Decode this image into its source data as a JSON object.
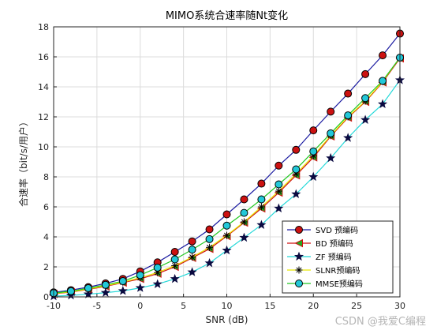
{
  "chart_data": {
    "type": "line",
    "title": "MIMO系统合速率随Nt变化",
    "xlabel": "SNR (dB)",
    "ylabel": "合速率（bit/s/用户）",
    "xlim": [
      -10,
      30
    ],
    "ylim": [
      0,
      18
    ],
    "xticks": [
      -10,
      -5,
      0,
      5,
      10,
      15,
      20,
      25,
      30
    ],
    "yticks": [
      0,
      2,
      4,
      6,
      8,
      10,
      12,
      14,
      16,
      18
    ],
    "grid": true,
    "legend_position": "lower-right",
    "x": [
      -10,
      -8,
      -6,
      -4,
      -2,
      0,
      2,
      4,
      6,
      8,
      10,
      12,
      14,
      16,
      18,
      20,
      22,
      24,
      26,
      28,
      30
    ],
    "series": [
      {
        "name": "SVD 预编码",
        "color": "#1a1aa0",
        "marker": "circle",
        "marker_fill": "#cc1111",
        "values": [
          0.3,
          0.45,
          0.65,
          0.9,
          1.2,
          1.7,
          2.3,
          3.0,
          3.7,
          4.5,
          5.5,
          6.5,
          7.55,
          8.75,
          9.8,
          11.1,
          12.35,
          13.55,
          14.85,
          16.1,
          17.55
        ]
      },
      {
        "name": "BD 预编码",
        "color": "#d01010",
        "marker": "triangle-left",
        "marker_fill": "#22aa22",
        "values": [
          0.2,
          0.32,
          0.5,
          0.7,
          0.95,
          1.2,
          1.55,
          2.0,
          2.6,
          3.2,
          4.05,
          4.95,
          5.9,
          6.95,
          8.1,
          9.3,
          10.7,
          11.95,
          13.0,
          14.3,
          15.9
        ]
      },
      {
        "name": "ZF 预编码",
        "color": "#22d8d8",
        "marker": "star",
        "marker_fill": "#0a0a40",
        "values": [
          0.05,
          0.1,
          0.18,
          0.28,
          0.4,
          0.6,
          0.85,
          1.2,
          1.65,
          2.25,
          3.1,
          3.95,
          4.8,
          5.9,
          6.85,
          8.0,
          9.25,
          10.6,
          11.8,
          12.85,
          14.45
        ]
      },
      {
        "name": "SLNR预编码",
        "color": "#e8e800",
        "marker": "asterisk",
        "marker_fill": "#000000",
        "values": [
          0.22,
          0.34,
          0.52,
          0.74,
          0.98,
          1.28,
          1.62,
          2.08,
          2.65,
          3.3,
          4.1,
          5.0,
          6.0,
          7.05,
          8.2,
          9.4,
          10.75,
          12.0,
          13.05,
          14.35,
          15.95
        ]
      },
      {
        "name": "MMSE预编码",
        "color": "#22c822",
        "marker": "circle",
        "marker_fill": "#22c8d8",
        "values": [
          0.25,
          0.38,
          0.58,
          0.8,
          1.05,
          1.45,
          1.95,
          2.5,
          3.15,
          3.85,
          4.75,
          5.6,
          6.5,
          7.5,
          8.5,
          9.7,
          10.9,
          12.1,
          13.25,
          14.4,
          15.95
        ]
      }
    ]
  },
  "watermark": "CSDN @我爱C编程"
}
